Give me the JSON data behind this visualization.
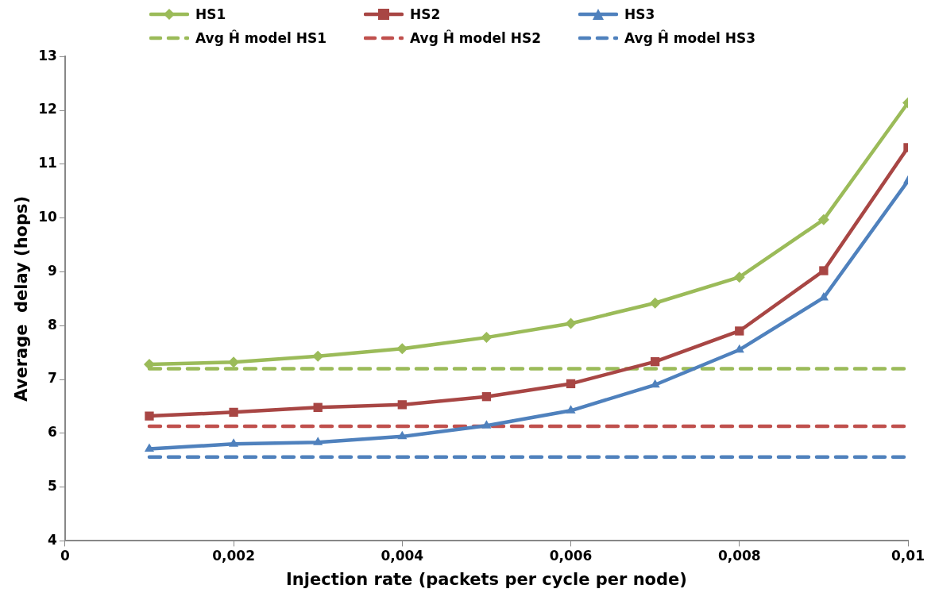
{
  "chart_data": {
    "type": "line",
    "xlabel": "Injection rate (packets per cycle per node)",
    "ylabel": "Average  delay (hops)",
    "x": [
      0.001,
      0.002,
      0.003,
      0.004,
      0.005,
      0.006,
      0.007,
      0.008,
      0.009,
      0.01
    ],
    "series": [
      {
        "name": "HS1",
        "color": "#9bbb59",
        "marker": "diamond",
        "line_style": "solid",
        "values": [
          7.28,
          7.32,
          7.43,
          7.57,
          7.78,
          8.04,
          8.42,
          8.9,
          9.97,
          12.14
        ]
      },
      {
        "name": "HS2",
        "color": "#a84644",
        "marker": "square",
        "line_style": "solid",
        "values": [
          6.32,
          6.39,
          6.48,
          6.53,
          6.68,
          6.92,
          7.33,
          7.9,
          9.02,
          11.31
        ]
      },
      {
        "name": "HS3",
        "color": "#4f81bd",
        "marker": "triangle",
        "line_style": "solid",
        "values": [
          5.71,
          5.8,
          5.83,
          5.94,
          6.14,
          6.42,
          6.9,
          7.55,
          8.52,
          10.69
        ]
      },
      {
        "name": "Avg Ĥ model HS1",
        "color": "#9bbb59",
        "marker": "none",
        "line_style": "dashed",
        "values": [
          7.2,
          7.2,
          7.2,
          7.2,
          7.2,
          7.2,
          7.2,
          7.2,
          7.2,
          7.2
        ]
      },
      {
        "name": "Avg Ĥ model HS2",
        "color": "#c0504d",
        "marker": "none",
        "line_style": "dashed",
        "values": [
          6.13,
          6.13,
          6.13,
          6.13,
          6.13,
          6.13,
          6.13,
          6.13,
          6.13,
          6.13
        ]
      },
      {
        "name": "Avg Ĥ model HS3",
        "color": "#4f81bd",
        "marker": "none",
        "line_style": "dashed",
        "values": [
          5.56,
          5.56,
          5.56,
          5.56,
          5.56,
          5.56,
          5.56,
          5.56,
          5.56,
          5.56
        ]
      }
    ],
    "xlim": [
      0,
      0.01
    ],
    "xticks": [
      0,
      {
        "value": 0.002,
        "label": "0,002"
      },
      {
        "value": 0.004,
        "label": "0,004"
      },
      {
        "value": 0.006,
        "label": "0,006"
      },
      {
        "value": 0.008,
        "label": "0,008"
      },
      {
        "value": 0.01,
        "label": "0,01"
      }
    ],
    "ylim": [
      4,
      13
    ],
    "yticks": [
      4,
      5,
      6,
      7,
      8,
      9,
      10,
      11,
      12,
      13
    ],
    "grid": false,
    "legend": "top"
  }
}
